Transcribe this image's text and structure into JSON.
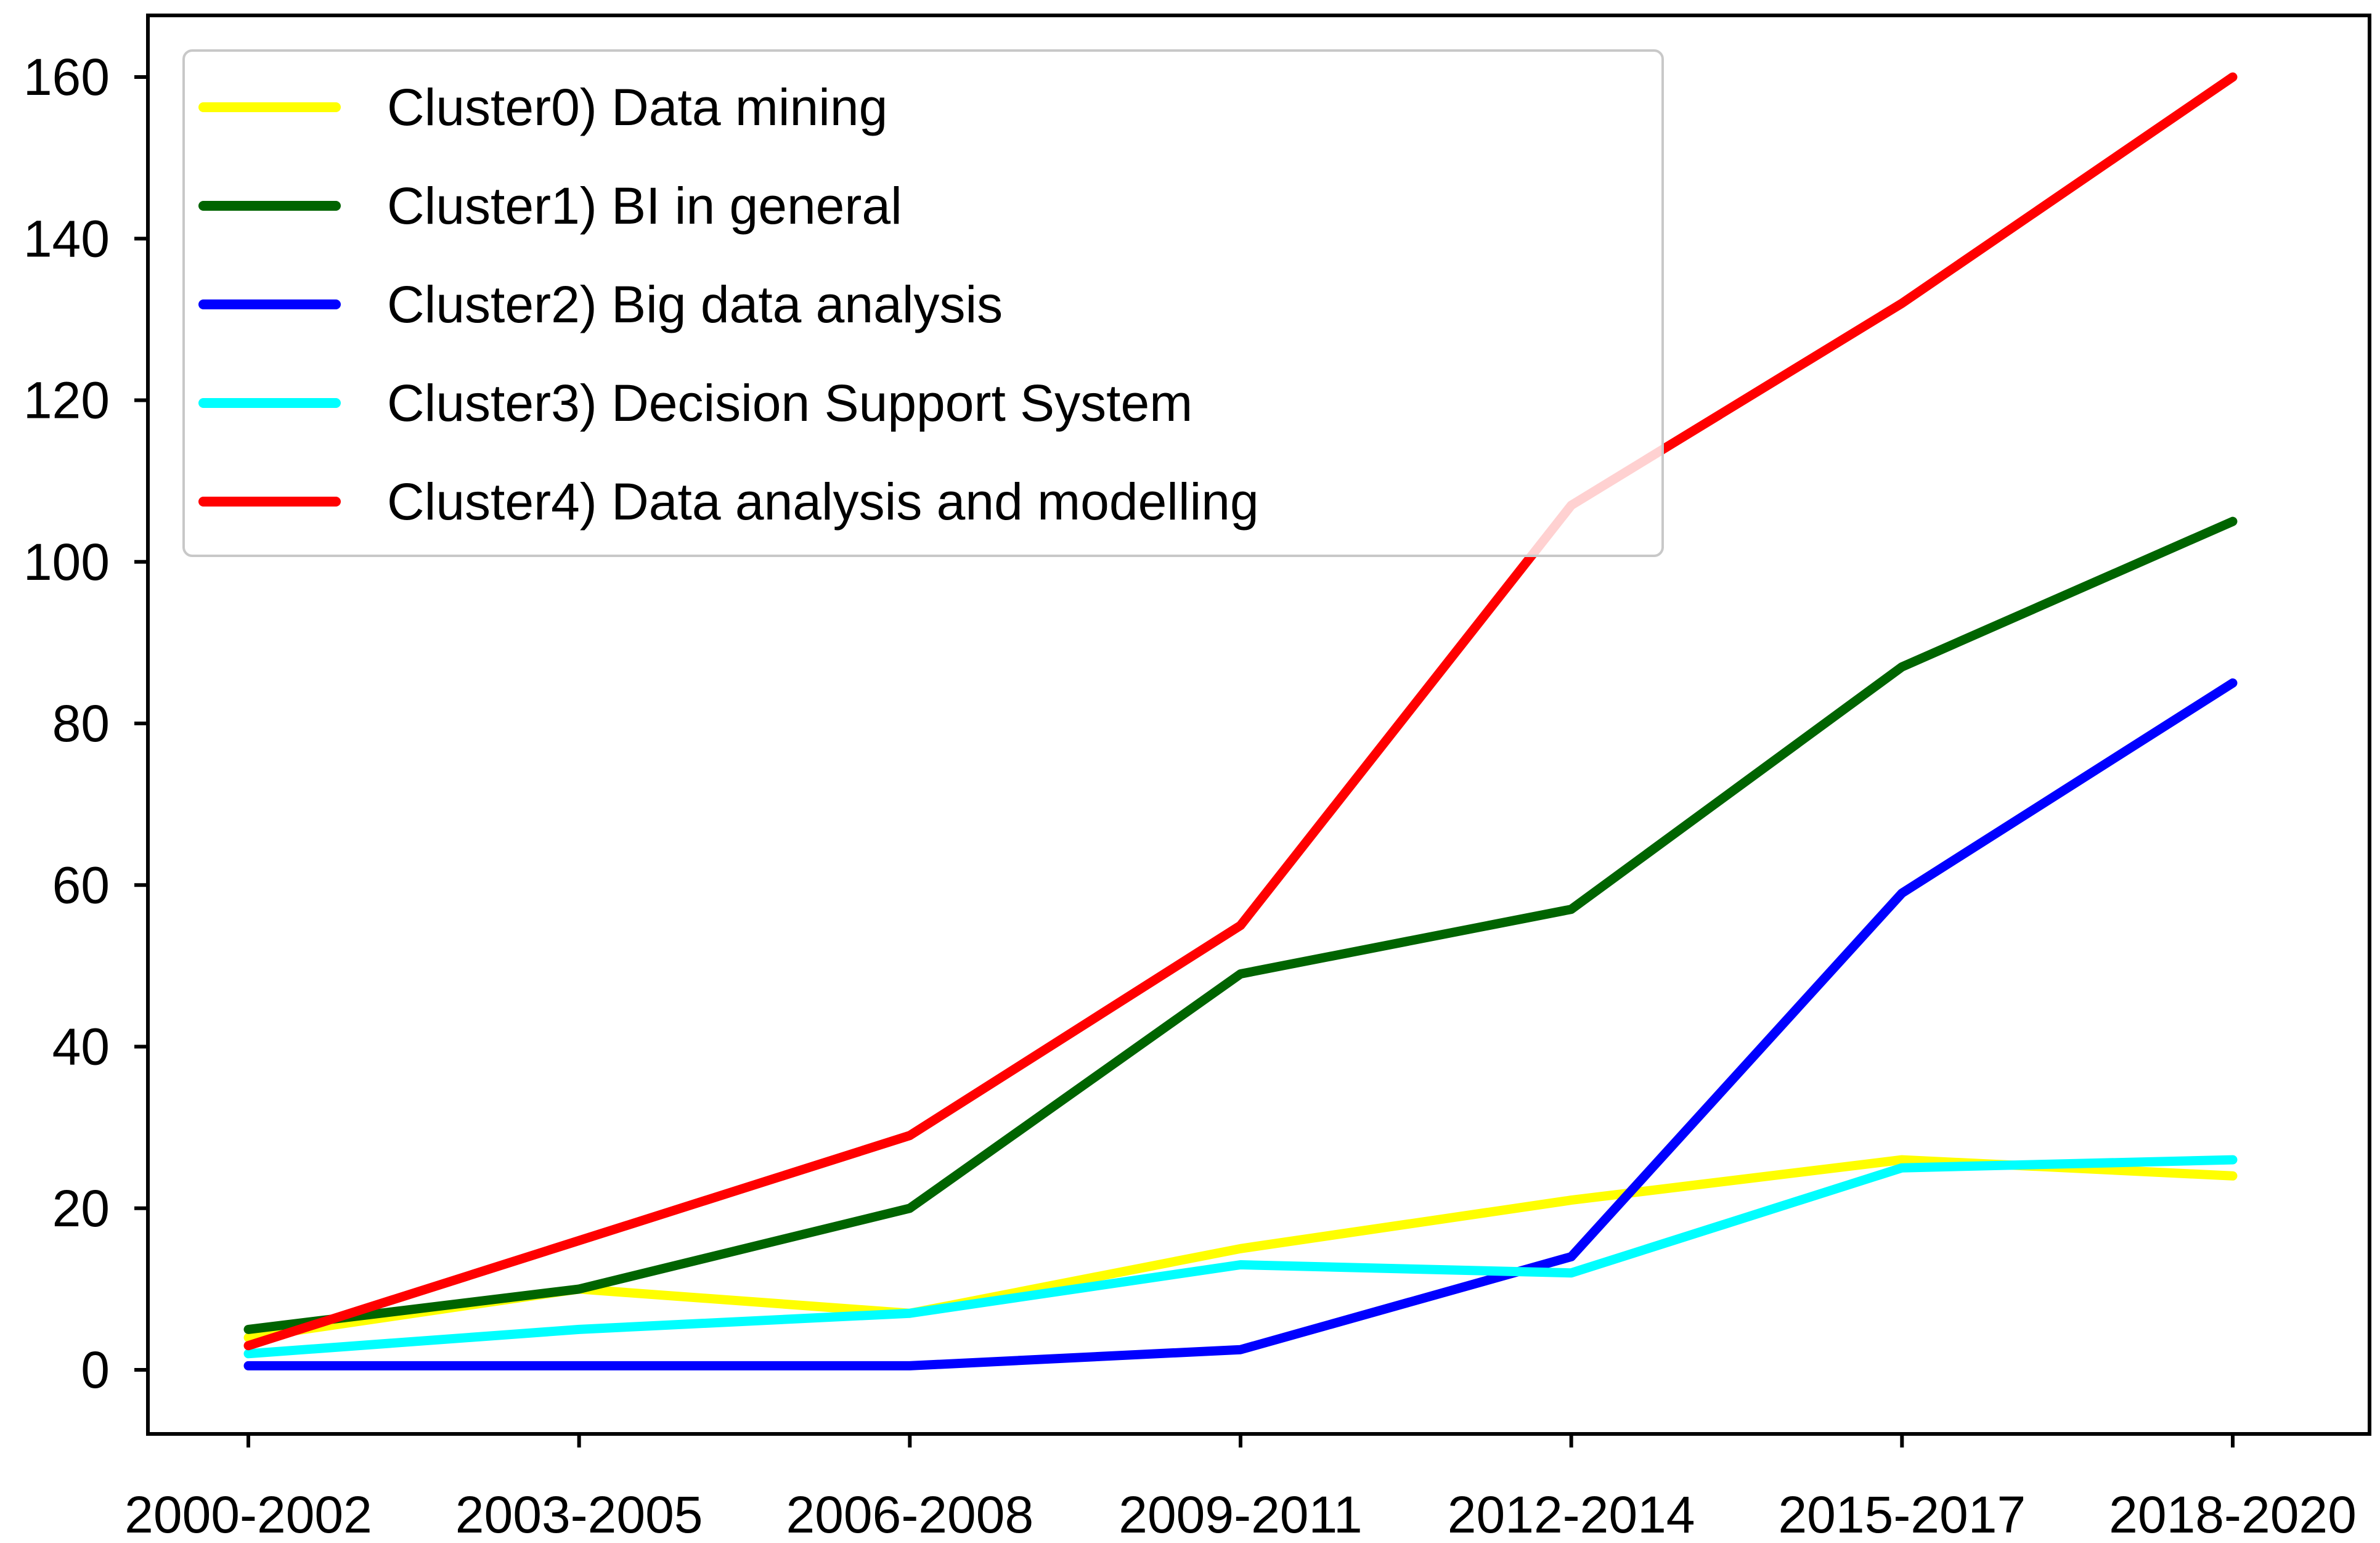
{
  "chart_data": {
    "type": "line",
    "title": "",
    "xlabel": "",
    "ylabel": "",
    "categories": [
      "2000-2002",
      "2003-2005",
      "2006-2008",
      "2009-2011",
      "2012-2014",
      "2015-2017",
      "2018-2020"
    ],
    "yticks": [
      0,
      20,
      40,
      60,
      80,
      100,
      120,
      140,
      160
    ],
    "ylim": [
      -8,
      167
    ],
    "grid": false,
    "legend_position": "top-left",
    "series": [
      {
        "name": "Cluster0) Data mining",
        "color": "#ffff00",
        "values": [
          4,
          10,
          7,
          15,
          21,
          26,
          24
        ]
      },
      {
        "name": "Cluster1) BI in general",
        "color": "#006400",
        "values": [
          5,
          10,
          20,
          49,
          57,
          87,
          105
        ]
      },
      {
        "name": "Cluster2) Big data analysis",
        "color": "#0000ff",
        "values": [
          0.5,
          0.5,
          0.5,
          2.5,
          14,
          59,
          85
        ]
      },
      {
        "name": "Cluster3) Decision Support System",
        "color": "#00ffff",
        "values": [
          2,
          5,
          7,
          13,
          12,
          25,
          26
        ]
      },
      {
        "name": "Cluster4) Data analysis and modelling",
        "color": "#ff0000",
        "values": [
          3,
          16,
          29,
          55,
          107,
          132,
          160
        ]
      }
    ]
  }
}
